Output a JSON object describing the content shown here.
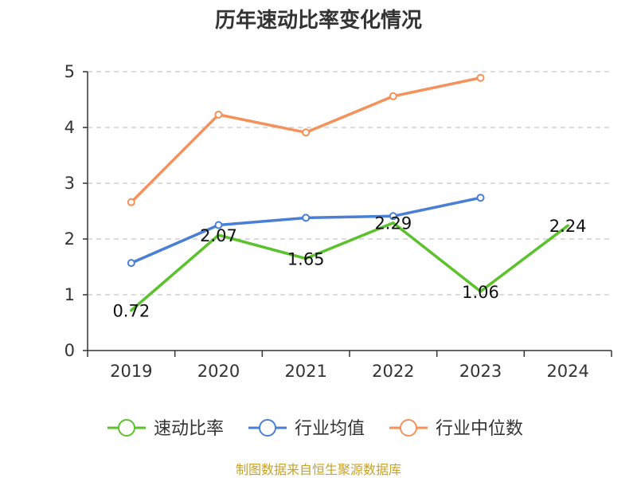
{
  "chart_data": {
    "type": "line",
    "title": "历年速动比率变化情况",
    "categories": [
      "2019",
      "2020",
      "2021",
      "2022",
      "2023",
      "2024"
    ],
    "ylim": [
      0,
      5
    ],
    "yticks": [
      "0",
      "1",
      "2",
      "3",
      "4",
      "5"
    ],
    "grid": true,
    "legend_position": "bottom",
    "series": [
      {
        "name": "速动比率",
        "color": "#5bc22c",
        "values": [
          0.72,
          2.07,
          1.65,
          2.29,
          1.06,
          2.24
        ],
        "labels": [
          "0.72",
          "2.07",
          "1.65",
          "2.29",
          "1.06",
          "2.24"
        ],
        "show_markers": false
      },
      {
        "name": "行业均值",
        "color": "#4a7fd6",
        "values": [
          1.57,
          2.25,
          2.38,
          2.41,
          2.74,
          null
        ],
        "show_markers": true
      },
      {
        "name": "行业中位数",
        "color": "#f5915a",
        "values": [
          2.66,
          4.23,
          3.91,
          4.56,
          4.89,
          null
        ],
        "show_markers": true
      }
    ],
    "source": "制图数据来自恒生聚源数据库"
  }
}
